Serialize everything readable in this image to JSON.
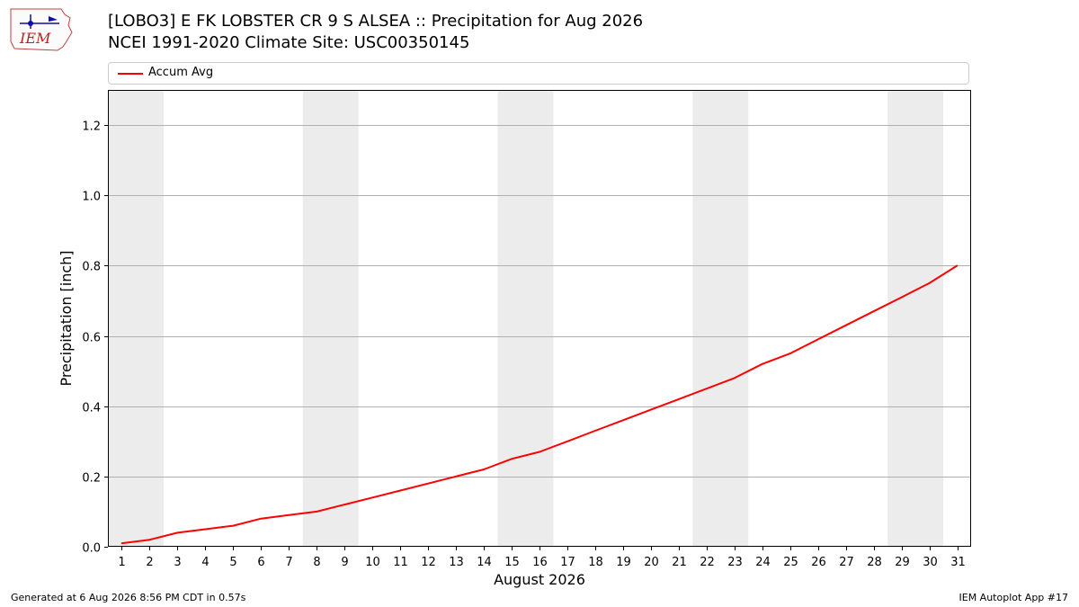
{
  "header": {
    "logo_text": "IEM",
    "title_line1": "[LOBO3] E FK LOBSTER CR 9 S ALSEA :: Precipitation for Aug 2026",
    "title_line2": "NCEI 1991-2020 Climate Site: USC00350145"
  },
  "footer": {
    "generated": "Generated at 6 Aug 2026 8:56 PM CDT in 0.57s",
    "app": "IEM Autoplot App #17"
  },
  "colors": {
    "series": "#ff0000",
    "weekend_band": "#ececec",
    "grid": "#b0b0b0"
  },
  "chart_data": {
    "type": "line",
    "title": "[LOBO3] E FK LOBSTER CR 9 S ALSEA :: Precipitation for Aug 2026",
    "subtitle": "NCEI 1991-2020 Climate Site: USC00350145",
    "xlabel": "August 2026",
    "ylabel": "Precipitation [inch]",
    "x": [
      1,
      2,
      3,
      4,
      5,
      6,
      7,
      8,
      9,
      10,
      11,
      12,
      13,
      14,
      15,
      16,
      17,
      18,
      19,
      20,
      21,
      22,
      23,
      24,
      25,
      26,
      27,
      28,
      29,
      30,
      31
    ],
    "xlim": [
      0.5,
      31.5
    ],
    "ylim": [
      0,
      1.3
    ],
    "yticks": [
      0.0,
      0.2,
      0.4,
      0.6,
      0.8,
      1.0,
      1.2
    ],
    "ytick_labels": [
      "0.0",
      "0.2",
      "0.4",
      "0.6",
      "0.8",
      "1.0",
      "1.2"
    ],
    "grid": "horizontal",
    "legend_position": "top",
    "weekend_bands": [
      [
        0.5,
        2.5
      ],
      [
        7.5,
        9.5
      ],
      [
        14.5,
        16.5
      ],
      [
        21.5,
        23.5
      ],
      [
        28.5,
        30.5
      ]
    ],
    "series": [
      {
        "name": "Accum Avg",
        "values": [
          0.01,
          0.02,
          0.04,
          0.05,
          0.06,
          0.08,
          0.09,
          0.1,
          0.12,
          0.14,
          0.16,
          0.18,
          0.2,
          0.22,
          0.25,
          0.27,
          0.3,
          0.33,
          0.36,
          0.39,
          0.42,
          0.45,
          0.48,
          0.52,
          0.55,
          0.59,
          0.63,
          0.67,
          0.71,
          0.75,
          0.8
        ]
      }
    ]
  }
}
